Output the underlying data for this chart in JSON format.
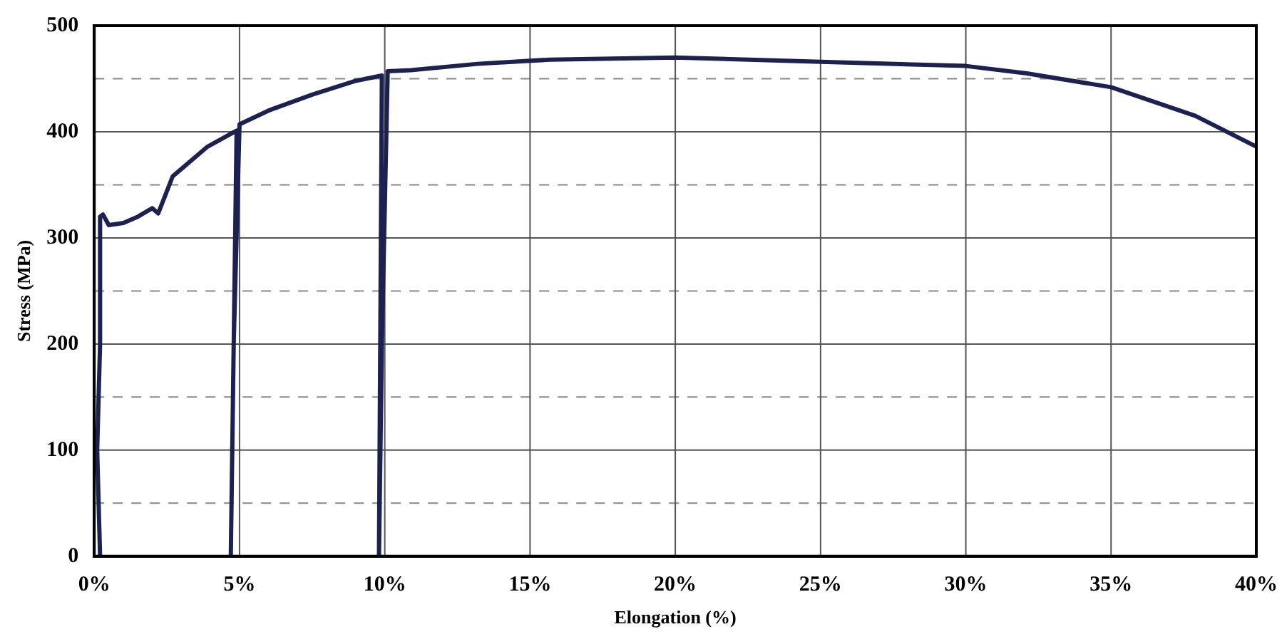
{
  "chart_data": {
    "type": "line",
    "xlabel": "Elongation (%)",
    "ylabel": "Stress (MPa)",
    "xlim": [
      0,
      40
    ],
    "ylim": [
      0,
      500
    ],
    "xticks": [
      {
        "value": 0,
        "label": "0%"
      },
      {
        "value": 5,
        "label": "5%"
      },
      {
        "value": 10,
        "label": "10%"
      },
      {
        "value": 15,
        "label": "15%"
      },
      {
        "value": 20,
        "label": "20%"
      },
      {
        "value": 25,
        "label": "25%"
      },
      {
        "value": 30,
        "label": "30%"
      },
      {
        "value": 35,
        "label": "35%"
      },
      {
        "value": 40,
        "label": "40%"
      }
    ],
    "yticks": [
      0,
      {
        "value": 50,
        "label": null
      },
      100,
      {
        "value": 150,
        "label": null
      },
      200,
      {
        "value": 250,
        "label": null
      },
      300,
      {
        "value": 350,
        "label": null
      },
      400,
      {
        "value": 450,
        "label": null
      },
      500
    ],
    "grid": true,
    "legend": false,
    "marker": "none",
    "line_style": "solid",
    "series": [
      {
        "color": "#1c2150",
        "x": [
          0.2,
          0.1,
          0.2,
          0.2,
          0.3,
          0.5,
          1.0,
          1.5,
          2.0,
          2.2,
          2.7,
          3.9,
          4.9,
          4.7,
          4.8,
          5.0,
          6.0,
          7.5,
          9.0,
          9.9,
          9.8,
          9.9,
          10.1,
          10.9,
          13.2,
          15.7,
          20,
          25,
          30,
          32.1,
          35,
          37.9,
          40
        ],
        "values": [
          0,
          100,
          200,
          320,
          322,
          312,
          314,
          320,
          328,
          323,
          358,
          386,
          401,
          0,
          200,
          407,
          420,
          435,
          448,
          453,
          0,
          200,
          457,
          458,
          464,
          468,
          470,
          466,
          462,
          455,
          442,
          415,
          386
        ]
      }
    ]
  }
}
